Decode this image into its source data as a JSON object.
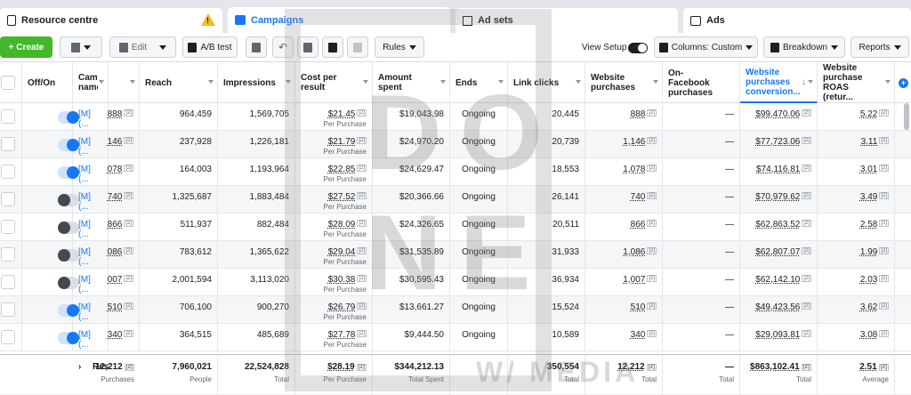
{
  "tabs": [
    {
      "label": "Resource centre"
    },
    {
      "label": "Campaigns"
    },
    {
      "label": "Ad sets"
    },
    {
      "label": "Ads"
    }
  ],
  "toolbar": {
    "create": "+ Create",
    "edit": "Edit",
    "abtest": "A/B test",
    "rules": "Rules",
    "view_setup": "View Setup",
    "columns": "Columns: Custom",
    "breakdown": "Breakdown",
    "reports": "Reports"
  },
  "headers": [
    "Off/On",
    "Campaign name",
    "Reach",
    "Impressions",
    "Cost per result",
    "Amount spent",
    "Ends",
    "Link clicks",
    "Website purchases",
    "On-Facebook purchases",
    "Website purchases conversion...",
    "Website purchase ROAS (retur..."
  ],
  "rows": [
    {
      "on": true,
      "name": "[M] (...",
      "results": "888",
      "reach": "964,459",
      "impressions": "1,569,705",
      "cpr": "$21.45",
      "amount": "$19,043.98",
      "ends": "Ongoing",
      "clicks": "20,445",
      "wp": "888",
      "ofp": "—",
      "wpcv": "$99,470.06",
      "roas": "5.22"
    },
    {
      "on": true,
      "name": "[M] (...",
      "results": "146",
      "reach": "237,928",
      "impressions": "1,226,181",
      "cpr": "$21.79",
      "amount": "$24,970.20",
      "ends": "Ongoing",
      "clicks": "20,739",
      "wp": "1,146",
      "ofp": "—",
      "wpcv": "$77,723.06",
      "roas": "3.11"
    },
    {
      "on": true,
      "name": "[M] (...",
      "results": "078",
      "reach": "164,003",
      "impressions": "1,193,964",
      "cpr": "$22.85",
      "amount": "$24,629.47",
      "ends": "Ongoing",
      "clicks": "18,553",
      "wp": "1,078",
      "ofp": "—",
      "wpcv": "$74,116.81",
      "roas": "3.01"
    },
    {
      "on": false,
      "name": "[M] (...",
      "results": "740",
      "reach": "1,325,687",
      "impressions": "1,883,484",
      "cpr": "$27.52",
      "amount": "$20,366.66",
      "ends": "Ongoing",
      "clicks": "26,141",
      "wp": "740",
      "ofp": "—",
      "wpcv": "$70,979.62",
      "roas": "3.49"
    },
    {
      "on": false,
      "name": "[M] (...",
      "results": "866",
      "reach": "511,937",
      "impressions": "882,484",
      "cpr": "$28.09",
      "amount": "$24,326.65",
      "ends": "Ongoing",
      "clicks": "20,511",
      "wp": "866",
      "ofp": "—",
      "wpcv": "$62,863.52",
      "roas": "2.58"
    },
    {
      "on": false,
      "name": "[M] (...",
      "results": "086",
      "reach": "783,612",
      "impressions": "1,365,622",
      "cpr": "$29.04",
      "amount": "$31,535.89",
      "ends": "Ongoing",
      "clicks": "31,933",
      "wp": "1,086",
      "ofp": "—",
      "wpcv": "$62,807.07",
      "roas": "1.99"
    },
    {
      "on": false,
      "name": "[M] (...",
      "results": "007",
      "reach": "2,001,594",
      "impressions": "3,113,020",
      "cpr": "$30.38",
      "amount": "$30,595.43",
      "ends": "Ongoing",
      "clicks": "36,934",
      "wp": "1,007",
      "ofp": "—",
      "wpcv": "$62,142.10",
      "roas": "2.03"
    },
    {
      "on": true,
      "name": "[M] (...",
      "results": "510",
      "reach": "706,100",
      "impressions": "900,270",
      "cpr": "$26.79",
      "amount": "$13,661.27",
      "ends": "Ongoing",
      "clicks": "15,524",
      "wp": "510",
      "ofp": "—",
      "wpcv": "$49,423.56",
      "roas": "3.62"
    },
    {
      "on": true,
      "name": "[M] (...",
      "results": "340",
      "reach": "364,515",
      "impressions": "485,689",
      "cpr": "$27.78",
      "amount": "$9,444.50",
      "ends": "Ongoing",
      "clicks": "10,589",
      "wp": "340",
      "ofp": "—",
      "wpcv": "$29,093.81",
      "roas": "3.08"
    }
  ],
  "per_purchase": "Per Purchase",
  "footer": {
    "label": "Res",
    "results": "12,212",
    "results_sub": "Purchases",
    "reach": "7,960,021",
    "reach_sub": "People",
    "impressions": "22,524,828",
    "impressions_sub": "Total",
    "cpr": "$28.19",
    "cpr_sub": "Per Purchase",
    "amount": "$344,212.13",
    "amount_sub": "Total Spent",
    "clicks": "350,554",
    "clicks_sub": "Total",
    "wp": "12,212",
    "wp_sub": "Total",
    "ofp": "—",
    "ofp_sub": "Total",
    "wpcv": "$863,102.41",
    "wpcv_sub": "Total",
    "roas": "2.51",
    "roas_sub": "Average"
  },
  "footnote": "[2]",
  "watermark": {
    "l1": "DO",
    "l2": "NE",
    "l3": "W/ MEDIA"
  }
}
